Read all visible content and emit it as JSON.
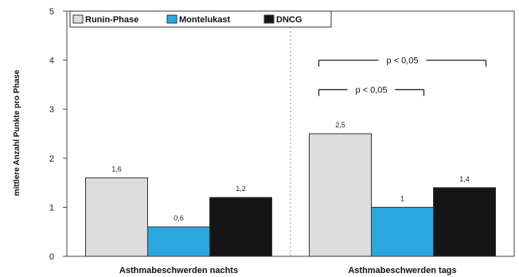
{
  "chart_data": {
    "type": "bar",
    "categories": [
      "Asthmabeschwerden nachts",
      "Asthmabeschwerden tags"
    ],
    "series": [
      {
        "name": "Runin-Phase",
        "values": [
          1.6,
          2.5
        ],
        "value_labels": [
          "1,6",
          "2,5"
        ],
        "color": "#dcdcdc"
      },
      {
        "name": "Montelukast",
        "values": [
          0.6,
          1.0
        ],
        "value_labels": [
          "0,6",
          "1"
        ],
        "color": "#29a8e0"
      },
      {
        "name": "DNCG",
        "values": [
          1.2,
          1.4
        ],
        "value_labels": [
          "1,2",
          "1,4"
        ],
        "color": "#151515"
      }
    ],
    "ylabel": "mittlere Anzahl Punkte pro Phase",
    "xlabel": "",
    "ylim": [
      0,
      5
    ],
    "yticks": [
      "0",
      "1",
      "2",
      "3",
      "4",
      "5"
    ],
    "annotations": [
      {
        "text": "p < 0,05",
        "category": "Asthmabeschwerden tags",
        "from_series": "Runin-Phase",
        "to_series": "DNCG",
        "level": 4.0
      },
      {
        "text": "p < 0,05",
        "category": "Asthmabeschwerden tags",
        "from_series": "Runin-Phase",
        "to_series": "Montelukast",
        "level": 3.4
      }
    ],
    "legend_position": "top-left",
    "grid": false
  }
}
